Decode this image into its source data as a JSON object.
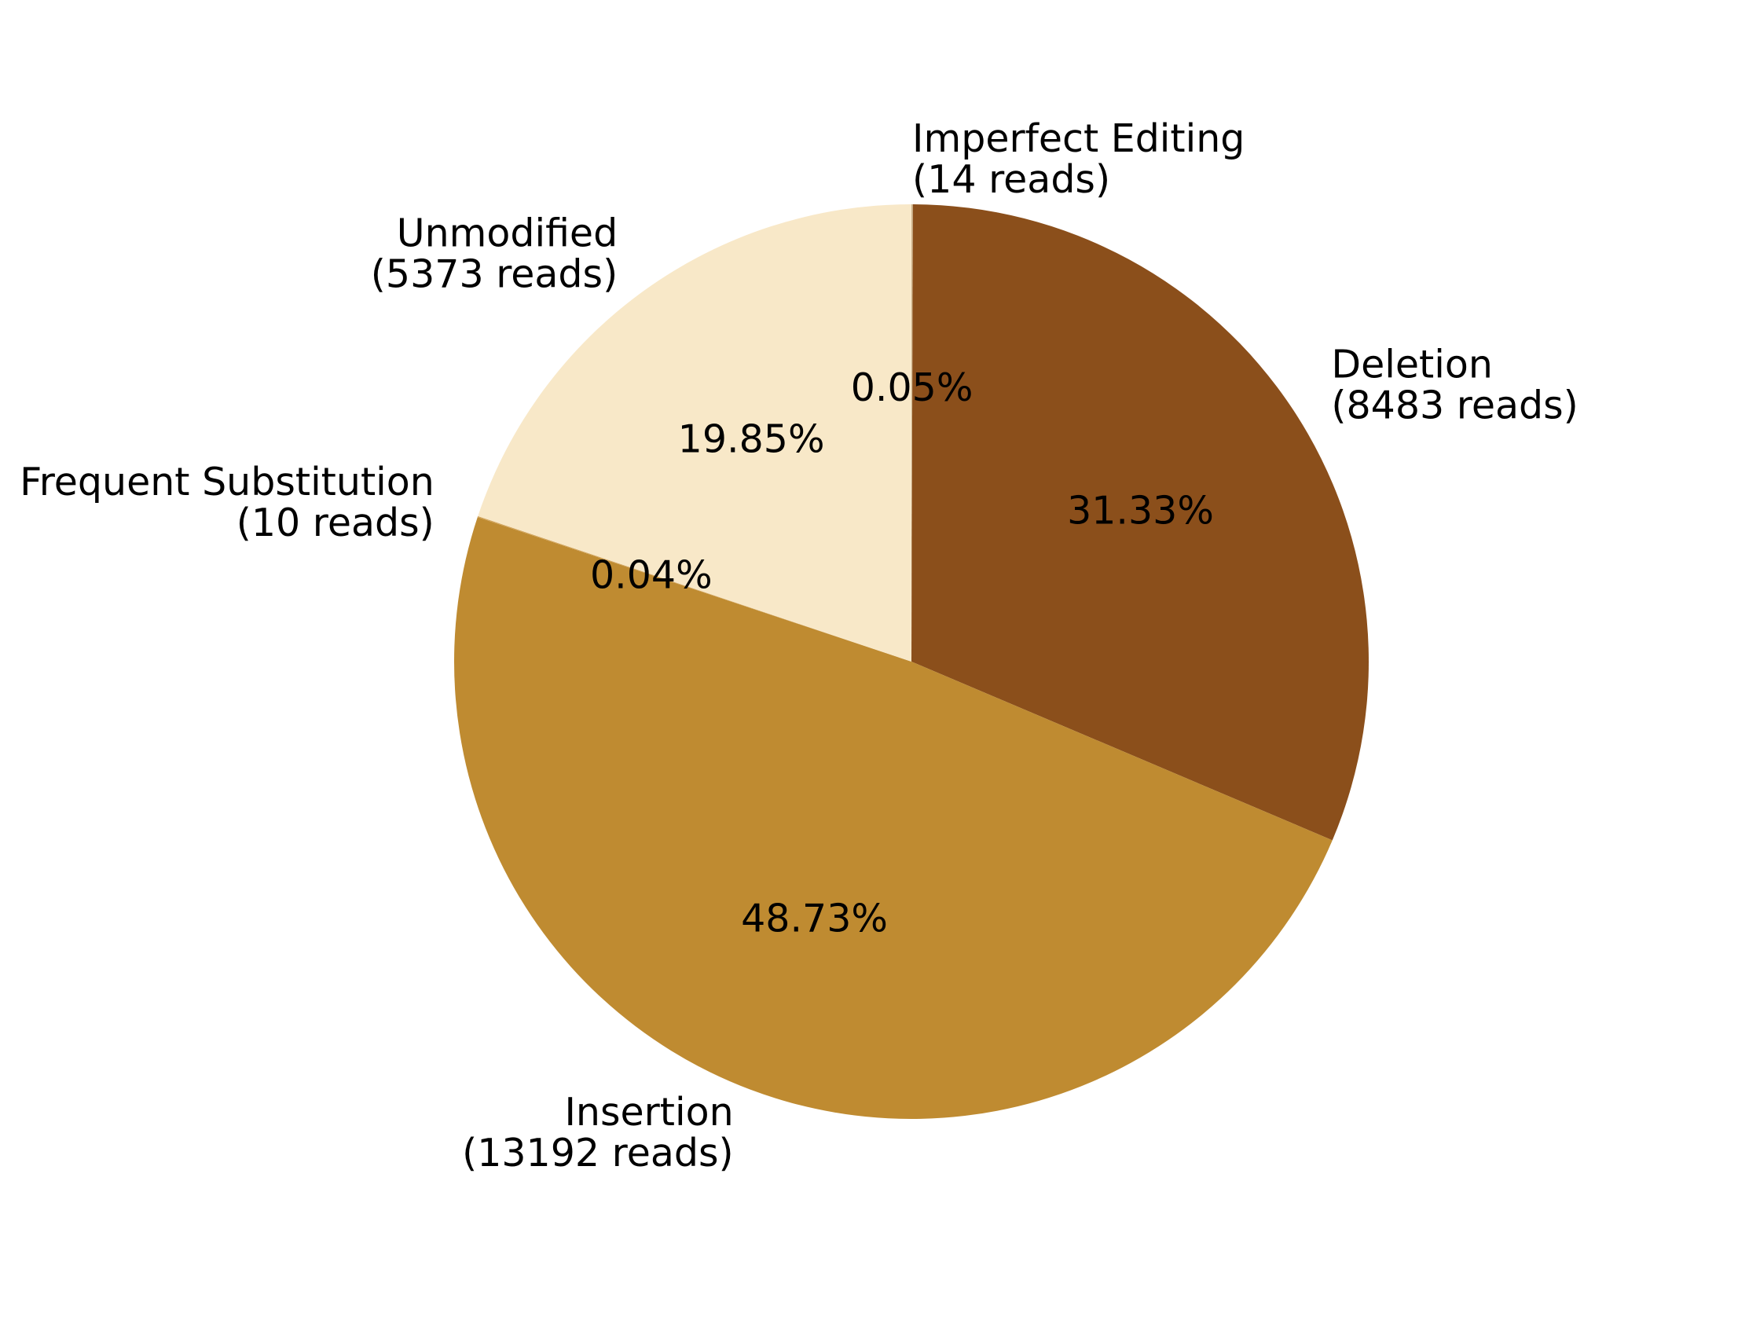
{
  "chart_data": {
    "type": "pie",
    "title": "",
    "start_angle_deg": 90,
    "direction": "clockwise",
    "slices": [
      {
        "label": "Imperfect Editing",
        "count_text": "(14 reads)",
        "value": 14,
        "percent_text": "0.05%",
        "color": "#CDB38B"
      },
      {
        "label": "Deletion",
        "count_text": "(8483 reads)",
        "value": 8483,
        "percent_text": "31.33%",
        "color": "#8B4F1B"
      },
      {
        "label": "Insertion",
        "count_text": "(13192 reads)",
        "value": 13192,
        "percent_text": "48.73%",
        "color": "#BF8B31"
      },
      {
        "label": "Frequent Substitution",
        "count_text": "(10 reads)",
        "value": 10,
        "percent_text": "0.04%",
        "color": "#D2A45A"
      },
      {
        "label": "Unmodified",
        "count_text": "(5373 reads)",
        "value": 5373,
        "percent_text": "19.85%",
        "color": "#F8E8C8"
      }
    ]
  }
}
